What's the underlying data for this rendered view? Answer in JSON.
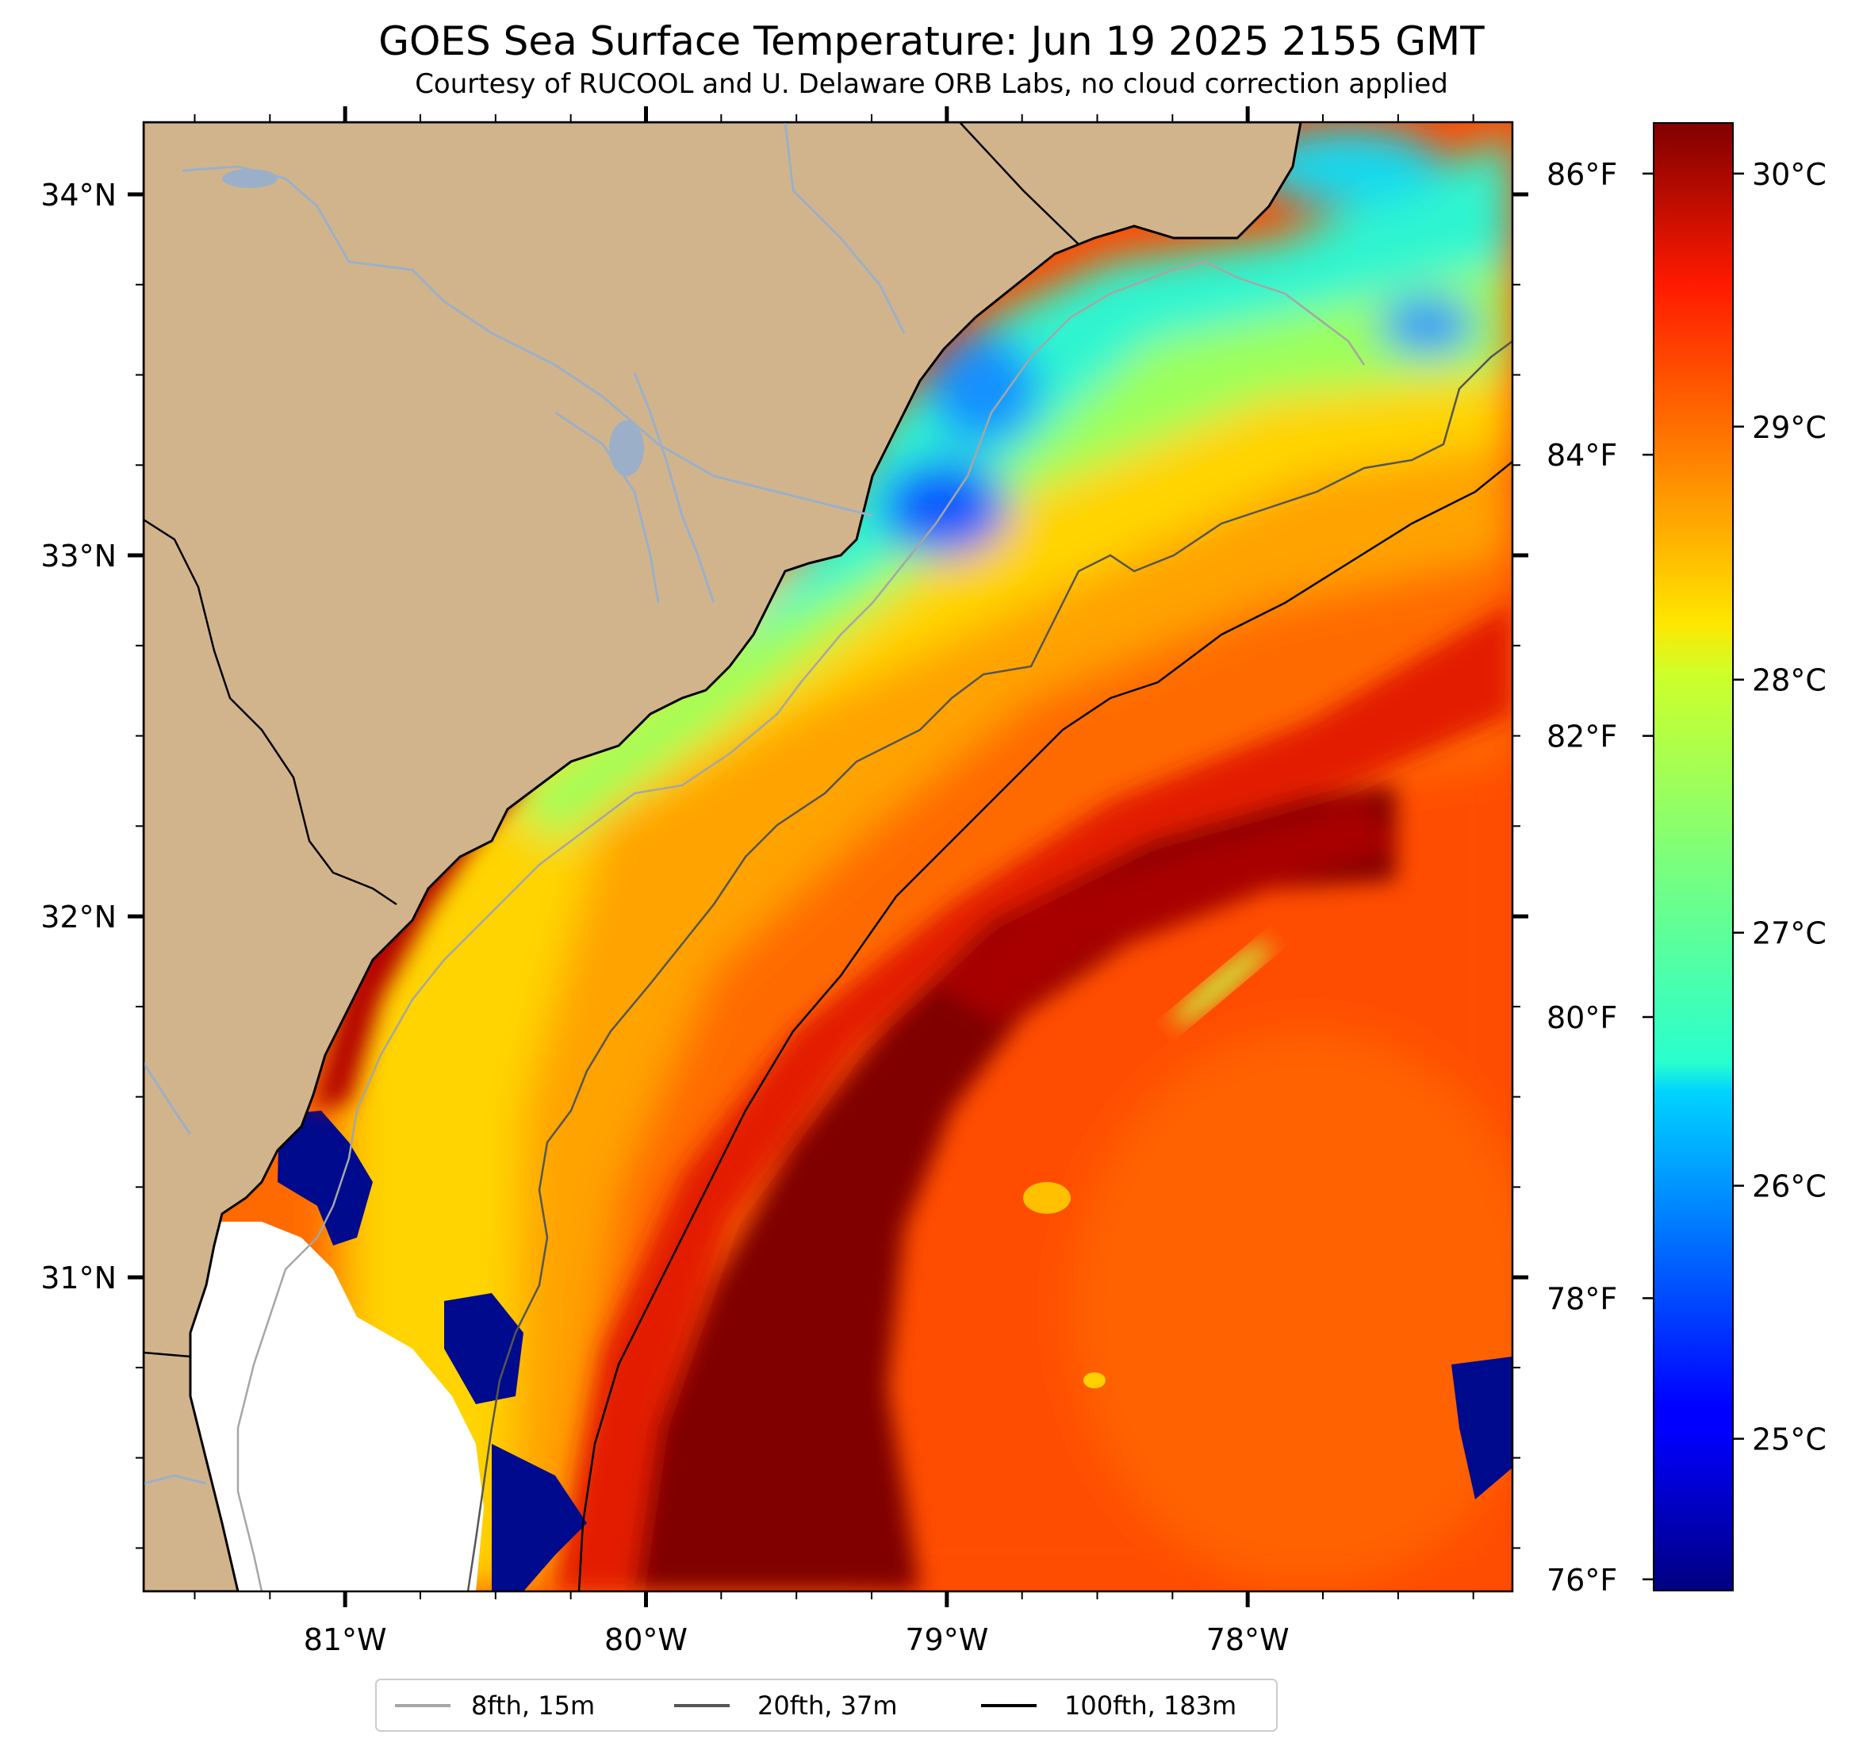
{
  "title": "GOES Sea Surface Temperature: Jun 19 2025 2155 GMT",
  "subtitle": "Courtesy of RUCOOL and U. Delaware ORB Labs, no cloud correction applied",
  "map": {
    "lon_range": [
      -81.67,
      -77.12
    ],
    "lat_range": [
      30.13,
      34.2
    ],
    "lon_ticks": [
      {
        "value": -81,
        "label": "81°W"
      },
      {
        "value": -80,
        "label": "80°W"
      },
      {
        "value": -79,
        "label": "79°W"
      },
      {
        "value": -78,
        "label": "78°W"
      }
    ],
    "lat_ticks": [
      {
        "value": 34,
        "label": "34°N"
      },
      {
        "value": 33,
        "label": "33°N"
      },
      {
        "value": 32,
        "label": "32°N"
      },
      {
        "value": 31,
        "label": "31°N"
      }
    ],
    "land_color": "#d2b48c",
    "coastline_color": "#000000",
    "river_color": "#9bb0c8"
  },
  "colorbar": {
    "colormap": "jet",
    "range_c": [
      24.4,
      30.2
    ],
    "celsius_ticks": [
      {
        "value": 30,
        "label": "30°C"
      },
      {
        "value": 29,
        "label": "29°C"
      },
      {
        "value": 28,
        "label": "28°C"
      },
      {
        "value": 27,
        "label": "27°C"
      },
      {
        "value": 26,
        "label": "26°C"
      },
      {
        "value": 25,
        "label": "25°C"
      }
    ],
    "fahrenheit_ticks": [
      {
        "value": 86,
        "label": "86°F"
      },
      {
        "value": 84,
        "label": "84°F"
      },
      {
        "value": 82,
        "label": "82°F"
      },
      {
        "value": 80,
        "label": "80°F"
      },
      {
        "value": 78,
        "label": "78°F"
      },
      {
        "value": 76,
        "label": "76°F"
      }
    ]
  },
  "legend": {
    "placement": "bottom-center",
    "items": [
      {
        "label": "8fth, 15m",
        "color": "#a6a6a6"
      },
      {
        "label": "20fth, 37m",
        "color": "#555555"
      },
      {
        "label": "100fth, 183m",
        "color": "#000000"
      }
    ]
  }
}
